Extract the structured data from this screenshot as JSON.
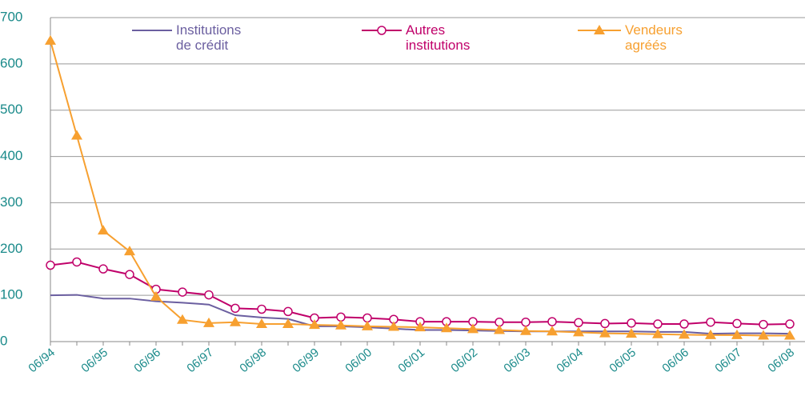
{
  "chart_data": {
    "type": "line",
    "categories": [
      "06/94",
      null,
      "06/95",
      null,
      "06/96",
      null,
      "06/97",
      null,
      "06/98",
      null,
      "06/99",
      null,
      "06/00",
      null,
      "06/01",
      null,
      "06/02",
      null,
      "06/03",
      null,
      "06/04",
      null,
      "06/05",
      null,
      "06/06",
      null,
      "06/07",
      null,
      "06/08"
    ],
    "series": [
      {
        "name": "Institutions de crédit",
        "color": "#6b5fa0",
        "marker": "none",
        "values": [
          100,
          101,
          93,
          93,
          87,
          84,
          80,
          57,
          52,
          49,
          33,
          33,
          31,
          28,
          25,
          25,
          24,
          23,
          22,
          22,
          22,
          22,
          22,
          21,
          21,
          17,
          18,
          18,
          17
        ]
      },
      {
        "name": "Autres institutions",
        "color": "#c0006a",
        "marker": "circle",
        "values": [
          165,
          172,
          157,
          145,
          113,
          107,
          101,
          72,
          70,
          65,
          51,
          53,
          51,
          48,
          43,
          43,
          43,
          42,
          42,
          43,
          41,
          39,
          40,
          38,
          38,
          42,
          39,
          37,
          38
        ]
      },
      {
        "name": "Vendeurs agréés",
        "color": "#f7a030",
        "marker": "triangle",
        "values": [
          650,
          445,
          240,
          195,
          97,
          47,
          40,
          42,
          38,
          38,
          36,
          35,
          33,
          32,
          31,
          29,
          27,
          25,
          23,
          22,
          20,
          18,
          17,
          16,
          15,
          14,
          14,
          13,
          13
        ]
      }
    ],
    "ylim": [
      0,
      700
    ],
    "yticks": [
      0,
      100,
      200,
      300,
      400,
      500,
      600,
      700
    ],
    "grid": true
  }
}
